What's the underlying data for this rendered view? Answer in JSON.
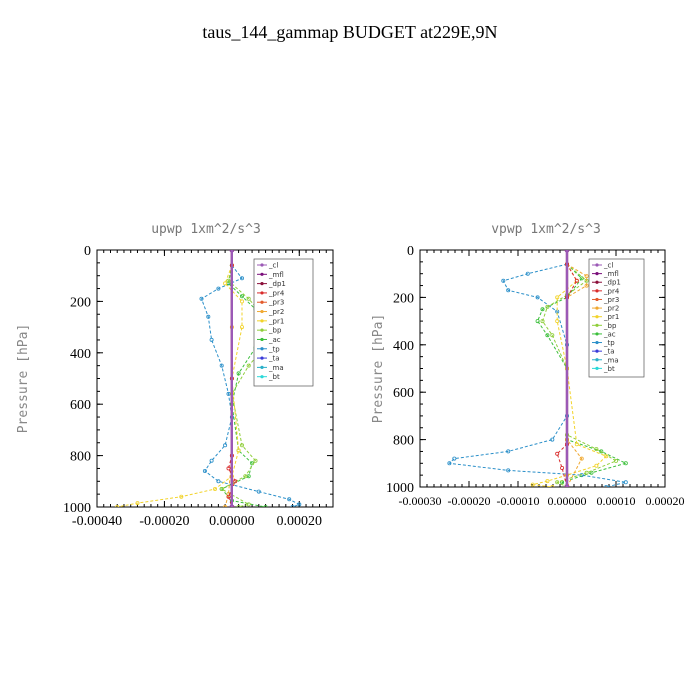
{
  "title": "taus_144_gammap  BUDGET at229E,9N",
  "legend_entries": [
    {
      "label": "_cl",
      "color": "#9b59b6"
    },
    {
      "label": "_mfl",
      "color": "#7b0f7b"
    },
    {
      "label": "_dp1",
      "color": "#8b0f3a"
    },
    {
      "label": "_pr4",
      "color": "#d92b2b"
    },
    {
      "label": "_pr3",
      "color": "#e35a2b"
    },
    {
      "label": "_pr2",
      "color": "#f0a830"
    },
    {
      "label": "_pr1",
      "color": "#f2d32a"
    },
    {
      "label": "_bp",
      "color": "#8fce3a"
    },
    {
      "label": "_ac",
      "color": "#3bbf3b"
    },
    {
      "label": "_tp",
      "color": "#2a8fc9"
    },
    {
      "label": "_ta",
      "color": "#3a3ad9"
    },
    {
      "label": "_ma",
      "color": "#2ab0c9"
    },
    {
      "label": "_bt",
      "color": "#2ad9d9"
    }
  ],
  "chart_data": [
    {
      "type": "line",
      "title": "upwp  1xm^2/s^3",
      "xlabel": "",
      "ylabel": "Pressure [hPa]",
      "xlim": [
        -0.0004,
        0.0003
      ],
      "ylim": [
        1000,
        0
      ],
      "xticks": [
        -0.0004,
        -0.0002,
        0.0,
        0.0002
      ],
      "xtick_labels": [
        "-0.00040",
        "-0.00020",
        "0.00000",
        "0.00020"
      ],
      "yticks": [
        0,
        200,
        400,
        600,
        800,
        1000
      ],
      "ytick_labels": [
        "0",
        "200",
        "400",
        "600",
        "800",
        "1000"
      ],
      "legend_position": "top-right",
      "series": [
        {
          "name": "_tp",
          "color": "#2a8fc9",
          "points": [
            [
              0.0,
              60
            ],
            [
              3e-05,
              110
            ],
            [
              -4e-05,
              150
            ],
            [
              -9e-05,
              190
            ],
            [
              -7e-05,
              260
            ],
            [
              -6e-05,
              350
            ],
            [
              -3e-05,
              450
            ],
            [
              -1e-05,
              560
            ],
            [
              0.0,
              650
            ],
            [
              -2e-05,
              760
            ],
            [
              -6e-05,
              820
            ],
            [
              -8e-05,
              860
            ],
            [
              -4e-05,
              900
            ],
            [
              8e-05,
              940
            ],
            [
              0.00017,
              970
            ],
            [
              0.0002,
              990
            ],
            [
              0.00018,
              1000
            ]
          ]
        },
        {
          "name": "_ac",
          "color": "#3bbf3b",
          "points": [
            [
              0.0,
              60
            ],
            [
              -1e-05,
              130
            ],
            [
              3e-05,
              180
            ],
            [
              7e-05,
              230
            ],
            [
              8e-05,
              300
            ],
            [
              7e-05,
              380
            ],
            [
              2e-05,
              480
            ],
            [
              0.0,
              600
            ],
            [
              2e-05,
              780
            ],
            [
              6e-05,
              830
            ],
            [
              5e-05,
              880
            ],
            [
              -3e-05,
              930
            ],
            [
              0.0,
              975
            ],
            [
              0.0001,
              1000
            ]
          ]
        },
        {
          "name": "_bp",
          "color": "#8fce3a",
          "points": [
            [
              0.0,
              60
            ],
            [
              -1e-05,
              120
            ],
            [
              5e-05,
              190
            ],
            [
              9e-05,
              250
            ],
            [
              0.00011,
              320
            ],
            [
              9e-05,
              390
            ],
            [
              5e-05,
              450
            ],
            [
              0.0,
              560
            ],
            [
              3e-05,
              760
            ],
            [
              7e-05,
              820
            ],
            [
              4e-05,
              880
            ],
            [
              -3e-05,
              930
            ],
            [
              5e-05,
              990
            ],
            [
              2e-05,
              1000
            ]
          ]
        },
        {
          "name": "_pr1",
          "color": "#f2d32a",
          "points": [
            [
              0.0,
              60
            ],
            [
              -2e-05,
              130
            ],
            [
              3e-05,
              200
            ],
            [
              3e-05,
              300
            ],
            [
              0.0,
              500
            ],
            [
              2e-05,
              780
            ],
            [
              0.0,
              880
            ],
            [
              -5e-05,
              930
            ],
            [
              -0.00015,
              960
            ],
            [
              -0.00028,
              985
            ],
            [
              -0.00034,
              1000
            ]
          ]
        },
        {
          "name": "_pr2",
          "color": "#f0a830",
          "points": [
            [
              0.0,
              60
            ],
            [
              0.0,
              300
            ],
            [
              0.0,
              800
            ],
            [
              -1e-05,
              950
            ],
            [
              -2e-05,
              1000
            ]
          ]
        },
        {
          "name": "_pr4",
          "color": "#d92b2b",
          "points": [
            [
              0.0,
              60
            ],
            [
              0.0,
              500
            ],
            [
              0.0,
              800
            ],
            [
              -1e-05,
              850
            ],
            [
              1e-05,
              900
            ],
            [
              -1e-05,
              960
            ],
            [
              0.0,
              1000
            ]
          ]
        },
        {
          "name": "_dp1",
          "color": "#8b0f3a",
          "points": [
            [
              0.0,
              0
            ],
            [
              0.0,
              1000
            ]
          ]
        },
        {
          "name": "_mfl",
          "color": "#7b0f7b",
          "points": [
            [
              0.0,
              0
            ],
            [
              0.0,
              1000
            ]
          ]
        },
        {
          "name": "_cl",
          "color": "#9b59b6",
          "points": [
            [
              0.0,
              0
            ],
            [
              0.0,
              1000
            ]
          ]
        }
      ]
    },
    {
      "type": "line",
      "title": "vpwp  1xm^2/s^3",
      "xlabel": "",
      "ylabel": "Pressure [hPa]",
      "xlim": [
        -0.0003,
        0.0002
      ],
      "ylim": [
        1000,
        0
      ],
      "xticks": [
        -0.0003,
        -0.0002,
        -0.0001,
        0.0,
        0.0001,
        0.0002
      ],
      "xtick_labels": [
        "-0.00030",
        "-0.00020",
        "-0.00010",
        "0.00000",
        "0.00010",
        "0.00020"
      ],
      "yticks": [
        0,
        200,
        400,
        600,
        800,
        1000
      ],
      "ytick_labels": [
        "0",
        "200",
        "400",
        "600",
        "800",
        "1000"
      ],
      "legend_position": "top-right",
      "series": [
        {
          "name": "_tp",
          "color": "#2a8fc9",
          "points": [
            [
              0.0,
              60
            ],
            [
              -8e-05,
              100
            ],
            [
              -0.00013,
              130
            ],
            [
              -0.00012,
              170
            ],
            [
              -6e-05,
              200
            ],
            [
              -2e-05,
              260
            ],
            [
              0.0,
              400
            ],
            [
              0.0,
              700
            ],
            [
              -3e-05,
              800
            ],
            [
              -0.00012,
              850
            ],
            [
              -0.00023,
              880
            ],
            [
              -0.00024,
              900
            ],
            [
              -0.00012,
              930
            ],
            [
              3e-05,
              950
            ],
            [
              0.00012,
              980
            ],
            [
              8e-05,
              1000
            ]
          ]
        },
        {
          "name": "_ac",
          "color": "#3bbf3b",
          "points": [
            [
              0.0,
              60
            ],
            [
              3e-05,
              120
            ],
            [
              0.0,
              200
            ],
            [
              -5e-05,
              250
            ],
            [
              -6e-05,
              300
            ],
            [
              -4e-05,
              360
            ],
            [
              0.0,
              500
            ],
            [
              0.0,
              800
            ],
            [
              7e-05,
              850
            ],
            [
              0.00012,
              900
            ],
            [
              5e-05,
              940
            ],
            [
              -1e-05,
              980
            ],
            [
              0.0,
              1000
            ]
          ]
        },
        {
          "name": "_bp",
          "color": "#8fce3a",
          "points": [
            [
              0.0,
              60
            ],
            [
              4e-05,
              130
            ],
            [
              0.0,
              190
            ],
            [
              -4e-05,
              240
            ],
            [
              -5e-05,
              300
            ],
            [
              -3e-05,
              360
            ],
            [
              0.0,
              500
            ],
            [
              0.0,
              780
            ],
            [
              6e-05,
              840
            ],
            [
              0.0001,
              890
            ],
            [
              4e-05,
              940
            ],
            [
              -2e-05,
              980
            ],
            [
              0.0,
              1000
            ]
          ]
        },
        {
          "name": "_pr1",
          "color": "#f2d32a",
          "points": [
            [
              0.0,
              60
            ],
            [
              2e-05,
              130
            ],
            [
              -2e-05,
              200
            ],
            [
              -2e-05,
              300
            ],
            [
              0.0,
              500
            ],
            [
              2e-05,
              820
            ],
            [
              8e-05,
              870
            ],
            [
              6e-05,
              910
            ],
            [
              0.0,
              950
            ],
            [
              -4e-05,
              975
            ],
            [
              -7e-05,
              990
            ],
            [
              -3e-05,
              1000
            ]
          ]
        },
        {
          "name": "_pr2",
          "color": "#f0a830",
          "points": [
            [
              0.0,
              60
            ],
            [
              4e-05,
              110
            ],
            [
              4e-05,
              150
            ],
            [
              0.0,
              200
            ],
            [
              0.0,
              800
            ],
            [
              3e-05,
              880
            ],
            [
              0.0,
              1000
            ]
          ]
        },
        {
          "name": "_pr4",
          "color": "#d92b2b",
          "points": [
            [
              0.0,
              60
            ],
            [
              2e-05,
              130
            ],
            [
              0.0,
              200
            ],
            [
              0.0,
              820
            ],
            [
              -2e-05,
              860
            ],
            [
              -1e-05,
              920
            ],
            [
              0.0,
              1000
            ]
          ]
        },
        {
          "name": "_dp1",
          "color": "#8b0f3a",
          "points": [
            [
              0.0,
              0
            ],
            [
              0.0,
              1000
            ]
          ]
        },
        {
          "name": "_mfl",
          "color": "#7b0f7b",
          "points": [
            [
              0.0,
              0
            ],
            [
              0.0,
              1000
            ]
          ]
        },
        {
          "name": "_cl",
          "color": "#9b59b6",
          "points": [
            [
              0.0,
              0
            ],
            [
              0.0,
              1000
            ]
          ]
        }
      ]
    }
  ]
}
